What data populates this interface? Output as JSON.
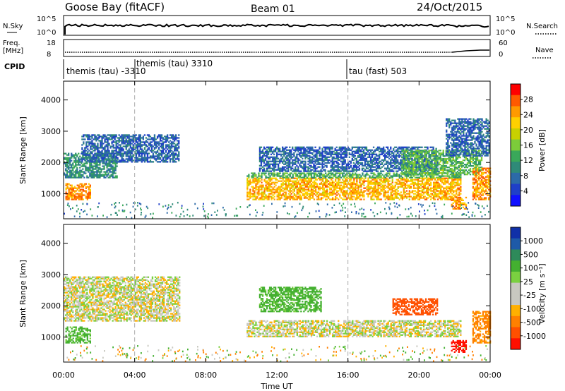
{
  "header": {
    "station": "Goose Bay (fitACF)",
    "beam": "Beam 01",
    "date": "24/Oct/2015"
  },
  "aux_panels": {
    "nsky_label": "N.Sky",
    "nsky_ticks": [
      "10^5",
      "10^0"
    ],
    "nsearch_label": "N.Search",
    "freq_label_1": "Freq.",
    "freq_label_2": "[MHz]",
    "freq_ticks": [
      "18",
      "8"
    ],
    "nave_ticks": [
      "60",
      "0"
    ],
    "nave_label": "Nave",
    "cpid_label": "CPID",
    "cpid_segments": [
      {
        "label": "themis (tau) -3310",
        "start_hour": 0
      },
      {
        "label": "themis (tau) 3310",
        "start_hour": 4
      },
      {
        "label": "tau (fast) 503",
        "start_hour": 16
      }
    ]
  },
  "power_colorbar": {
    "label": "Power [dB]",
    "ticks": [
      "28",
      "24",
      "20",
      "16",
      "12",
      "8",
      "4"
    ],
    "colors": [
      "#ff0000",
      "#ff5a00",
      "#ff9a00",
      "#ffd000",
      "#c8d000",
      "#7ccb3a",
      "#3aa85a",
      "#2f8a78",
      "#2c6aa8",
      "#1f3fc8",
      "#1010ff"
    ]
  },
  "velocity_colorbar": {
    "label": "Velocity [m s⁻¹]",
    "ticks": [
      "1000",
      "500",
      "100",
      "25",
      "-25",
      "-100",
      "-500",
      "-1000"
    ],
    "colors": [
      "#1030a8",
      "#1e5aa8",
      "#2e8a5a",
      "#44b030",
      "#7ad040",
      "#c8c8c0",
      "#c8c8c0",
      "#ffb000",
      "#ff8000",
      "#ff5000",
      "#ff1000"
    ]
  },
  "chart_data": {
    "type": "heatmap",
    "xlabel": "Time UT",
    "ylabel": "Slant Range [km]",
    "xlim_hours": [
      0,
      24
    ],
    "ylim_km": [
      200,
      4600
    ],
    "x_ticks": [
      "00:00",
      "04:00",
      "08:00",
      "12:00",
      "16:00",
      "20:00",
      "00:00"
    ],
    "y_ticks": [
      "1000",
      "2000",
      "3000",
      "4000"
    ],
    "y_tick_values": [
      1000,
      2000,
      3000,
      4000
    ],
    "vertical_markers_hours": [
      4,
      16
    ],
    "power_regions": [
      {
        "t0": 0.1,
        "t1": 1.5,
        "r0": 800,
        "r1": 1300,
        "db": 26
      },
      {
        "t0": 0.0,
        "t1": 3.0,
        "r0": 1500,
        "r1": 2300,
        "db": 10
      },
      {
        "t0": 1.0,
        "t1": 6.5,
        "r0": 2000,
        "r1": 2900,
        "db": 6
      },
      {
        "t0": 10.3,
        "t1": 22.3,
        "r0": 800,
        "r1": 1500,
        "db": 24
      },
      {
        "t0": 10.3,
        "t1": 22.3,
        "r0": 1500,
        "r1": 1650,
        "db": 13
      },
      {
        "t0": 11.0,
        "t1": 21.0,
        "r0": 1700,
        "r1": 2500,
        "db": 6
      },
      {
        "t0": 19.0,
        "t1": 23.5,
        "r0": 1600,
        "r1": 2400,
        "db": 14
      },
      {
        "t0": 21.5,
        "t1": 23.9,
        "r0": 2200,
        "r1": 3400,
        "db": 6
      },
      {
        "t0": 21.8,
        "t1": 22.6,
        "r0": 500,
        "r1": 900,
        "db": 26
      },
      {
        "t0": 23.0,
        "t1": 24.0,
        "r0": 800,
        "r1": 1800,
        "db": 26
      }
    ],
    "velocity_regions": [
      {
        "t0": 0.1,
        "t1": 1.5,
        "r0": 800,
        "r1": 1300,
        "v": 100
      },
      {
        "t0": 0.0,
        "t1": 6.5,
        "r0": 1500,
        "r1": 2900,
        "v": 0
      },
      {
        "t0": 10.3,
        "t1": 22.3,
        "r0": 1000,
        "r1": 1500,
        "v": 0
      },
      {
        "t0": 11.0,
        "t1": 14.5,
        "r0": 1800,
        "r1": 2600,
        "v": 100
      },
      {
        "t0": 18.5,
        "t1": 21.0,
        "r0": 1700,
        "r1": 2200,
        "v": -500
      },
      {
        "t0": 21.8,
        "t1": 22.6,
        "r0": 500,
        "r1": 900,
        "v": -1000
      },
      {
        "t0": 23.0,
        "t1": 24.0,
        "r0": 800,
        "r1": 1800,
        "v": -100
      }
    ]
  }
}
